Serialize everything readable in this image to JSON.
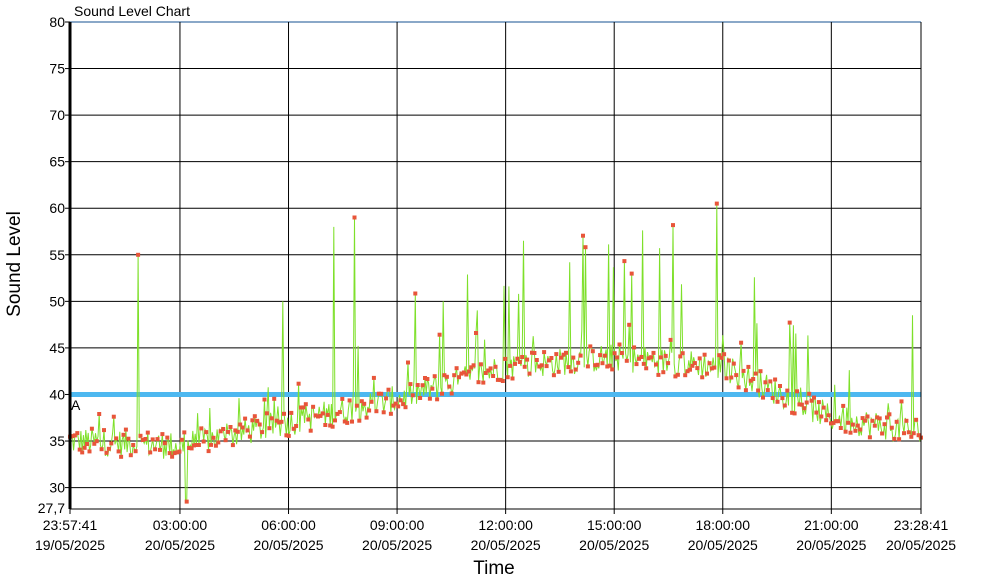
{
  "window": {
    "title": "Sound Level Chart"
  },
  "chart_data": {
    "type": "line",
    "title": "Sound Level Chart",
    "xlabel": "Time",
    "ylabel": "Sound Level",
    "ylim": [
      27.7,
      80
    ],
    "y_ticks": [
      30,
      35,
      40,
      45,
      50,
      55,
      60,
      65,
      70,
      75,
      80
    ],
    "y_min_label": "27,7",
    "x_range": [
      "19/05/2025 23:57:41",
      "20/05/2025 23:28:41"
    ],
    "x_ticks": [
      {
        "time": "23:57:41",
        "date": "19/05/2025"
      },
      {
        "time": "03:00:00",
        "date": "20/05/2025"
      },
      {
        "time": "06:00:00",
        "date": "20/05/2025"
      },
      {
        "time": "09:00:00",
        "date": "20/05/2025"
      },
      {
        "time": "12:00:00",
        "date": "20/05/2025"
      },
      {
        "time": "15:00:00",
        "date": "20/05/2025"
      },
      {
        "time": "18:00:00",
        "date": "20/05/2025"
      },
      {
        "time": "21:00:00",
        "date": "20/05/2025"
      },
      {
        "time": "23:28:41",
        "date": "20/05/2025"
      }
    ],
    "reference_lines": [
      {
        "label": "A",
        "value": 40,
        "color": "#4db8f0"
      }
    ],
    "grid": true,
    "series": [
      {
        "color": "#7ee02a",
        "marker_color": "#e8553a",
        "peak_points": [
          {
            "x": "20/05/2025 01:50",
            "y": 55
          },
          {
            "x": "20/05/2025 03:10",
            "y": 28.5
          },
          {
            "x": "20/05/2025 05:50",
            "y": 50
          },
          {
            "x": "20/05/2025 07:15",
            "y": 58
          },
          {
            "x": "20/05/2025 07:50",
            "y": 59
          },
          {
            "x": "20/05/2025 12:30",
            "y": 56.5
          },
          {
            "x": "20/05/2025 17:50",
            "y": 60.5
          },
          {
            "x": "20/05/2025 23:15",
            "y": 48.5
          }
        ],
        "trend": [
          {
            "x": "19/05/2025 23:57:41",
            "y": 35
          },
          {
            "x": "20/05/2025 03:00",
            "y": 34.5
          },
          {
            "x": "20/05/2025 06:00",
            "y": 37
          },
          {
            "x": "20/05/2025 09:00",
            "y": 39.5
          },
          {
            "x": "20/05/2025 12:00",
            "y": 43
          },
          {
            "x": "20/05/2025 15:00",
            "y": 44
          },
          {
            "x": "20/05/2025 18:00",
            "y": 43
          },
          {
            "x": "20/05/2025 21:00",
            "y": 37.5
          },
          {
            "x": "20/05/2025 23:28:41",
            "y": 36
          }
        ]
      }
    ]
  }
}
